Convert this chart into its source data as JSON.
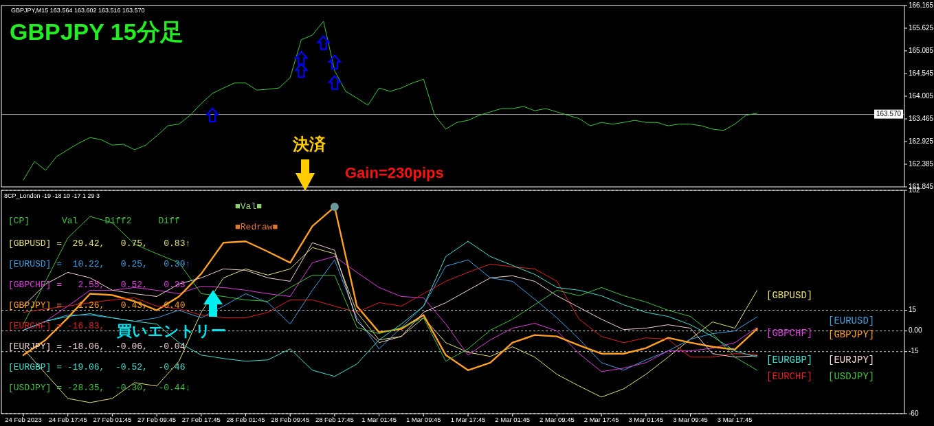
{
  "chart_data": [
    {
      "type": "line",
      "title": "GBPJPY 15分足",
      "subtitle": "GBPJPY,M15 163.564 163.602 163.516 163.570",
      "tick_labels": "y",
      "grid": false,
      "categories": [
        null,
        null,
        null,
        null,
        null,
        null,
        null,
        null,
        null,
        null,
        null,
        null,
        null,
        null,
        null,
        null,
        null,
        null,
        null,
        null,
        null,
        null,
        null,
        null,
        null,
        null,
        null,
        null,
        null,
        null,
        null,
        null,
        null,
        null,
        null,
        null,
        null,
        null,
        null,
        null,
        null,
        null,
        null,
        null,
        null,
        null,
        null,
        null,
        null,
        null,
        null,
        null,
        null,
        null,
        null,
        null,
        null,
        null,
        null,
        null,
        null,
        null,
        null,
        null,
        null,
        null,
        null
      ],
      "series": [
        {
          "color": "#3cc83c",
          "values": [
            162.01,
            162.45,
            162.24,
            162.57,
            162.73,
            162.89,
            163.02,
            162.97,
            162.84,
            162.86,
            162.73,
            162.84,
            163.06,
            163.3,
            163.34,
            163.55,
            163.83,
            164.07,
            164.2,
            164.32,
            164.32,
            164.15,
            164.17,
            164.2,
            164.45,
            165.35,
            165.46,
            165.79,
            164.61,
            164.12,
            163.96,
            163.79,
            164.2,
            164.12,
            164.2,
            164.32,
            164.41,
            163.55,
            163.22,
            163.38,
            163.43,
            163.55,
            163.63,
            163.71,
            163.71,
            163.76,
            163.66,
            163.71,
            163.63,
            163.55,
            163.47,
            163.3,
            163.38,
            163.34,
            163.38,
            163.43,
            163.38,
            163.38,
            163.3,
            163.34,
            163.34,
            163.3,
            163.22,
            163.19,
            163.34,
            163.55,
            163.6
          ]
        },
        {
          "type": "scatter",
          "marker": "triangle",
          "color": "#0000ff",
          "values": [
            null,
            null,
            null,
            null,
            null,
            null,
            null,
            null,
            null,
            null,
            null,
            null,
            null,
            null,
            null,
            null,
            null,
            163.55,
            null,
            null,
            null,
            null,
            null,
            null,
            null,
            164.61,
            null,
            165.27,
            164.32,
            null,
            null,
            null,
            null,
            null,
            null,
            null,
            null,
            null,
            null,
            null,
            null,
            null,
            null,
            null,
            null,
            null,
            null,
            null,
            null,
            null,
            null,
            null,
            null,
            null,
            null,
            null,
            null,
            null,
            null,
            null,
            null,
            null,
            null,
            null,
            null,
            null,
            null
          ]
        },
        {
          "type": "scatter",
          "marker": "triangle",
          "color": "#0000ff",
          "values": [
            null,
            null,
            null,
            null,
            null,
            null,
            null,
            null,
            null,
            null,
            null,
            null,
            null,
            null,
            null,
            null,
            null,
            null,
            null,
            null,
            null,
            null,
            null,
            null,
            null,
            164.9,
            null,
            null,
            164.81,
            null,
            null,
            null,
            null,
            null,
            null,
            null,
            null,
            null,
            null,
            null,
            null,
            null,
            null,
            null,
            null,
            null,
            null,
            null,
            null,
            null,
            null,
            null,
            null,
            null,
            null,
            null,
            null,
            null,
            null,
            null,
            null,
            null,
            null,
            null,
            null,
            null,
            null
          ]
        }
      ],
      "ylim": [
        161.845,
        166.165
      ],
      "yticks": [
        166.165,
        165.625,
        165.085,
        164.545,
        164.005,
        163.465,
        162.925,
        162.385,
        161.845
      ],
      "ref_lines": [
        {
          "axis": "y",
          "value": 163.57,
          "label": "163.570",
          "color": "#a0a0a0"
        }
      ],
      "annotations": [
        "決済",
        "Gain=230pips"
      ]
    },
    {
      "type": "line",
      "title": "8CP_London -19 -18 10 -17 1 29 3",
      "grid": "y",
      "legend": "right",
      "categories": [
        "24 Feb 2023",
        null,
        "24 Feb 17:45",
        null,
        "27 Feb 01:45",
        null,
        "27 Feb 09:45",
        null,
        "27 Feb 17:45",
        null,
        "28 Feb 01:45",
        null,
        "28 Feb 09:45",
        null,
        "28 Feb 17:45",
        null,
        "1 Mar 01:45",
        null,
        "1 Mar 09:45",
        null,
        "1 Mar 17:45",
        null,
        "2 Mar 01:45",
        null,
        "2 Mar 09:45",
        null,
        "2 Mar 17:45",
        null,
        "3 Mar 01:45",
        null,
        "3 Mar 09:45",
        null,
        "3 Mar 17:45",
        null
      ],
      "series": [
        {
          "name": "[GBPUSD]",
          "color": "#e6e07a",
          "values": [
            -13,
            -31,
            -49,
            -52,
            -49,
            -37.5,
            -40,
            -22,
            13.5,
            38.5,
            45,
            40.5,
            45,
            60.5,
            56,
            13.5,
            -6.5,
            -4,
            9.5,
            -8.5,
            -15.5,
            -18.5,
            -11.5,
            -19,
            -31.5,
            -40,
            -48,
            -42,
            -31.5,
            -19,
            -6,
            6.5,
            2,
            29.4
          ]
        },
        {
          "name": "[EURUSD]",
          "color": "#3fa0e0",
          "values": [
            0.5,
            7,
            11.5,
            11.5,
            9.5,
            7,
            9.5,
            15,
            9.5,
            18,
            27,
            20.5,
            5,
            29.5,
            51.5,
            9.5,
            -13,
            2.5,
            18,
            47,
            51.5,
            38.5,
            36,
            23,
            9.5,
            -6,
            -23,
            -28.5,
            -21,
            -14.5,
            -6,
            -2,
            0,
            10.2
          ]
        },
        {
          "name": "[GBPCHF]",
          "color": "#e03ce0",
          "values": [
            0.5,
            7,
            18,
            29.5,
            29.5,
            31.5,
            29.5,
            27,
            32.5,
            31.5,
            29.5,
            27,
            25,
            49.5,
            54,
            42.5,
            31.5,
            25,
            24,
            5,
            -17.5,
            -6.5,
            2,
            5.5,
            0,
            -16.5,
            -29.5,
            -27,
            -23,
            -14.5,
            -14.5,
            -12.5,
            -8.5,
            2.5
          ]
        },
        {
          "name": "[GBPJPY]",
          "color": "#ffa020",
          "values": [
            -17.5,
            -6.5,
            9.5,
            27,
            26,
            21.5,
            15,
            25,
            41.5,
            64,
            65,
            57.5,
            49.5,
            76,
            90,
            18,
            -1,
            1.5,
            11.5,
            -17.5,
            -28.5,
            -23,
            -8.5,
            -3,
            -4,
            -10.5,
            -16.5,
            -16.5,
            -12.5,
            -5,
            -8.5,
            -11.5,
            -13.5,
            1.5
          ]
        },
        {
          "name": "[EURCHF]",
          "color": "#e02020",
          "values": [
            13.5,
            16,
            18,
            20.5,
            22.5,
            24,
            18,
            16,
            11.5,
            9.5,
            9.5,
            13.5,
            22.5,
            22.5,
            18,
            13.5,
            20.5,
            18,
            27,
            36,
            42.5,
            48.5,
            46.5,
            45,
            36,
            8.5,
            -4,
            -8.5,
            -5,
            -6,
            -19,
            -19,
            -16.5,
            -17
          ]
        },
        {
          "name": "[EURJPY]",
          "color": "#f5d5d5",
          "values": [
            18,
            34,
            42.5,
            38.5,
            29.5,
            27,
            25,
            34,
            38.5,
            45,
            44,
            38.5,
            36,
            64,
            58.5,
            7,
            -8.5,
            -4,
            13.5,
            20.5,
            29.5,
            38.5,
            40,
            36,
            25.5,
            17,
            8.5,
            1,
            2,
            4.5,
            2,
            -16.5,
            -19,
            -18
          ]
        },
        {
          "name": "[EURGBP]",
          "color": "#40e0d0",
          "values": [
            0.5,
            7,
            10.5,
            12.5,
            9.5,
            7,
            5,
            -8.5,
            -17.5,
            -20,
            -22,
            -21,
            -13,
            -28.5,
            -33,
            -24,
            -6.5,
            5,
            18,
            54,
            65,
            54,
            47.5,
            41,
            31.5,
            29.5,
            25.5,
            19,
            13.5,
            10.5,
            4.5,
            -4,
            -14.5,
            -19
          ]
        },
        {
          "name": "[USDJPY]",
          "color": "#40c040",
          "values": [
            5,
            36,
            67.5,
            83,
            78.5,
            63,
            56,
            49.5,
            27,
            25,
            22.5,
            21.5,
            31.5,
            40.5,
            40.5,
            2.5,
            -2,
            2.5,
            9.5,
            -22,
            -13,
            0.5,
            8.5,
            19,
            29.5,
            25.5,
            31.5,
            25.5,
            21,
            15,
            10.5,
            -2,
            -19,
            -28.5
          ]
        },
        {
          "type": "scatter",
          "marker": "circle",
          "color": "#6a9a9a",
          "values": [
            null,
            null,
            null,
            null,
            null,
            null,
            null,
            null,
            null,
            null,
            null,
            null,
            null,
            null,
            90,
            null,
            null,
            null,
            null,
            null,
            null,
            null,
            null,
            null,
            null,
            null,
            null,
            null,
            null,
            null,
            null,
            null,
            null,
            null
          ]
        }
      ],
      "ylim": [
        -60,
        102
      ],
      "yticks": [
        102,
        15,
        {
          "value": 0,
          "label": "0.00"
        },
        -15,
        -60
      ],
      "annotations": [
        "[CP]      Val     Diff2     Diff",
        "[GBPUSD] =  29.42,   0.75,   0.83↑",
        "[EURUSD] =  10.22,   0.25,   0.39↑",
        "[GBPCHF] =   2.55,   0.52,   0.33",
        "[GBPJPY] =   1.26,   0.43,   0.40",
        "[EURCHF] = -16.83,",
        "[EURJPY] = -18.06,  -0.06,  -0.04",
        "[EURGBP] = -19.06,  -0.52,  -0.46",
        "[USDJPY] = -28.35,  -0.30,  -0.44↓",
        "■Val■",
        "■Redraw■",
        "買いエントリー"
      ]
    }
  ]
}
